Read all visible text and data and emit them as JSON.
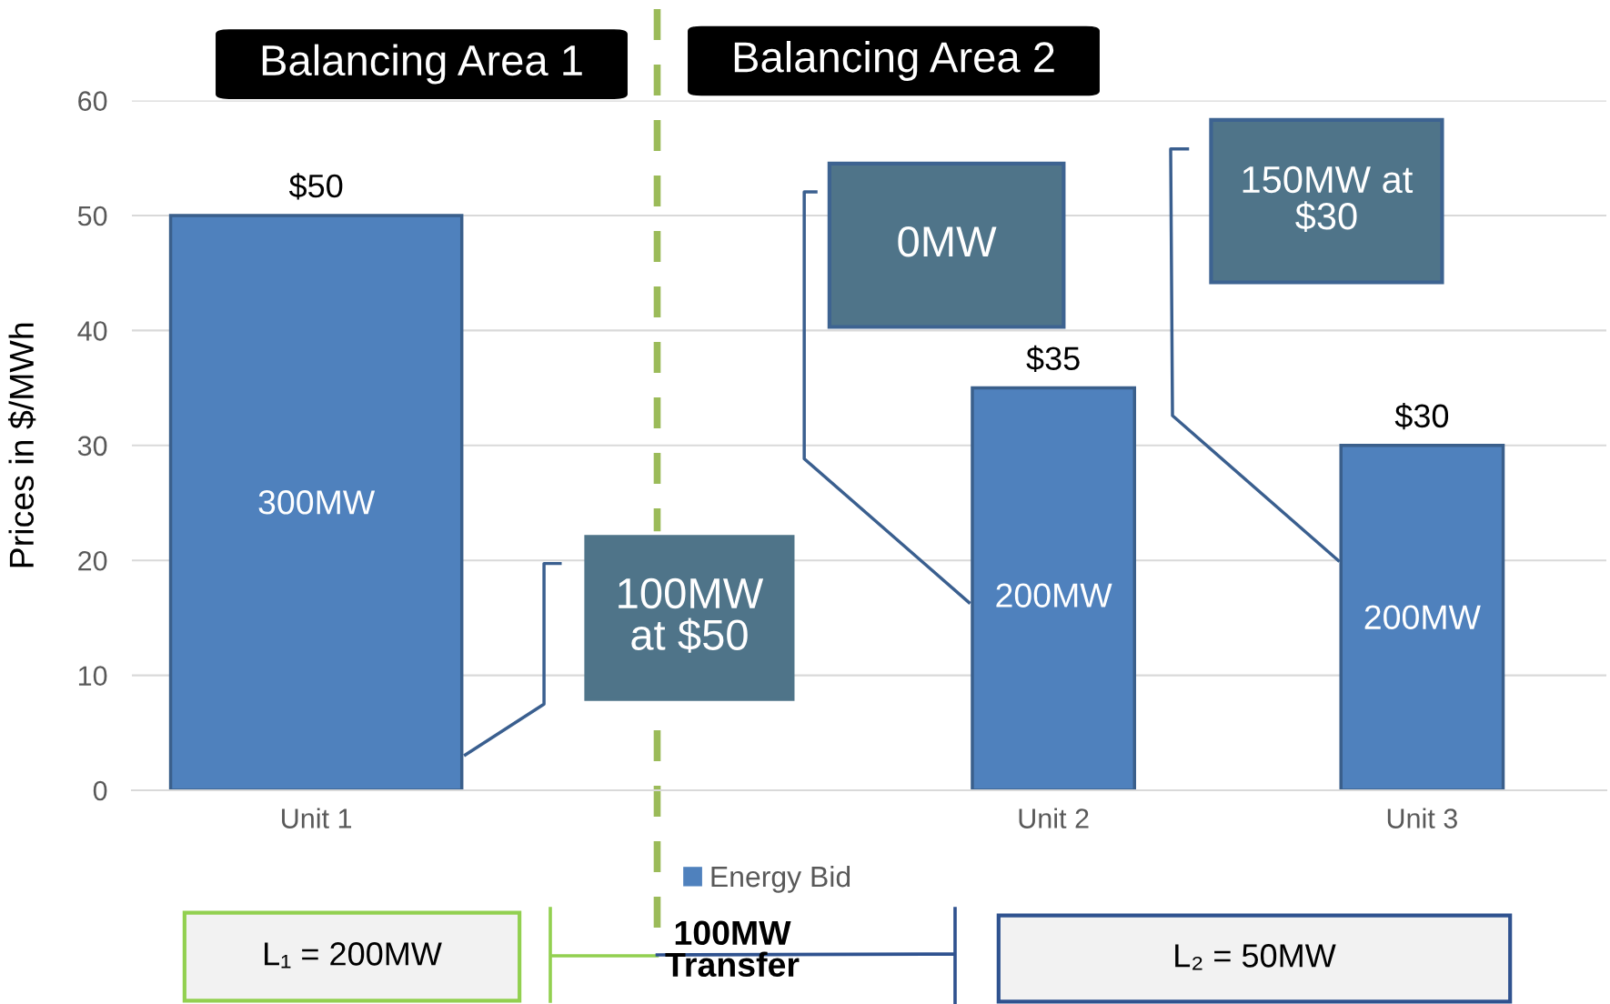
{
  "chart_data": {
    "type": "bar",
    "categories": [
      "Unit 1",
      null,
      "Unit 2",
      "Unit 3"
    ],
    "series": [
      {
        "name": "Energy Bid",
        "color": "#4f81bd",
        "values": [
          50,
          null,
          35,
          30
        ],
        "value_labels": [
          "$50",
          null,
          "$35",
          "$30"
        ]
      }
    ],
    "ylabel": "Prices in $/MWh",
    "ylim": [
      0,
      60
    ],
    "yticks": [
      0,
      10,
      20,
      30,
      40,
      50,
      60
    ],
    "grid": "y",
    "legend": "bottom",
    "annotations": [
      "300MW",
      "200MW",
      "200MW",
      "100MW\nat $50",
      "0MW",
      "150MW at\n$30",
      "Balancing Area 1",
      "Balancing Area 2",
      "L₁ = 200MW",
      "100MW\nTransfer",
      "L₂ = 50MW"
    ]
  }
}
